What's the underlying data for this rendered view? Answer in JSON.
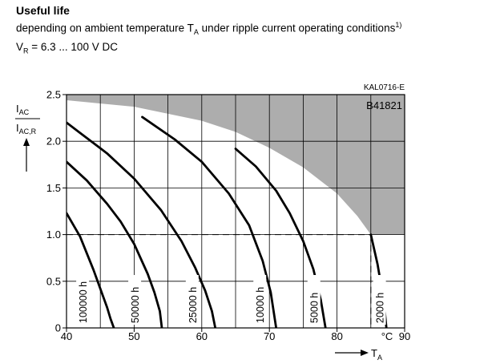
{
  "header": {
    "title": "Useful life",
    "subtitle_main": "depending on ambient temperature T",
    "subtitle_sub": "A",
    "subtitle_rest": " under ripple current operating conditions",
    "subtitle_sup": "1)",
    "vr_main": "V",
    "vr_sub": "R",
    "vr_rest": " = 6.3 ... 100 V DC"
  },
  "chart_data": {
    "type": "line",
    "code": "KAL0716-E",
    "part": "B41821",
    "ylabel": {
      "num": "I",
      "num_sub": "AC",
      "den": "I",
      "den_sub": "AC,R"
    },
    "xlabel": {
      "main": "T",
      "sub": "A"
    },
    "x_unit": "°C",
    "xlim": [
      40,
      90
    ],
    "ylim": [
      0,
      2.5
    ],
    "x_ticks": [
      40,
      50,
      60,
      70,
      80,
      90
    ],
    "y_ticks": [
      "0",
      "0.5",
      "1.0",
      "1.5",
      "2.0",
      "2.5"
    ],
    "grid": true,
    "reference": {
      "y": 1.0,
      "x": 85
    },
    "shaded_region_boundary": [
      [
        40,
        2.44
      ],
      [
        50,
        2.37
      ],
      [
        60,
        2.22
      ],
      [
        65,
        2.1
      ],
      [
        70,
        1.93
      ],
      [
        75,
        1.72
      ],
      [
        80,
        1.44
      ],
      [
        83,
        1.2
      ],
      [
        85,
        1.0
      ]
    ],
    "series": [
      {
        "label": "100000 h",
        "x": [
          40,
          42,
          44,
          45,
          46,
          46.5,
          47
        ],
        "y": [
          1.23,
          0.98,
          0.62,
          0.42,
          0.22,
          0.1,
          0
        ]
      },
      {
        "label": "50000 h",
        "x": [
          40,
          43,
          46,
          48,
          50,
          52,
          53,
          53.8,
          54.1
        ],
        "y": [
          1.78,
          1.58,
          1.33,
          1.14,
          0.9,
          0.58,
          0.38,
          0.18,
          0
        ]
      },
      {
        "label": "50000 h",
        "x": [
          40,
          42,
          46,
          50,
          54,
          57,
          59,
          60.5,
          61.5,
          62
        ],
        "y": [
          2.2,
          2.09,
          1.87,
          1.6,
          1.26,
          0.93,
          0.65,
          0.4,
          0.18,
          0
        ]
      },
      {
        "label": "25000 h",
        "x": [
          51.2,
          56,
          60,
          64,
          67,
          69,
          70.2,
          71
        ],
        "y": [
          2.26,
          2.02,
          1.78,
          1.44,
          1.1,
          0.72,
          0.38,
          0
        ]
      },
      {
        "label": "10000 h",
        "x": [
          65,
          68,
          71,
          73,
          75,
          76.5,
          77.6,
          78.3
        ],
        "y": [
          1.92,
          1.73,
          1.47,
          1.23,
          0.93,
          0.63,
          0.3,
          0
        ]
      },
      {
        "label": "5000 h",
        "x": [
          85,
          86,
          86.7,
          87.1,
          87.3
        ],
        "y": [
          1.0,
          0.68,
          0.38,
          0.15,
          0
        ]
      },
      {
        "label": "2000 h",
        "x": [],
        "y": []
      }
    ],
    "curve_labels": [
      {
        "text": "100000 h",
        "x": 42.5
      },
      {
        "text": "50000 h",
        "x": 50.2
      },
      {
        "text": "25000 h",
        "x": 58.7
      },
      {
        "text": "10000 h",
        "x": 68.7
      },
      {
        "text": "5000 h",
        "x": 76.7
      },
      {
        "text": "2000 h",
        "x": 86.4
      }
    ]
  }
}
